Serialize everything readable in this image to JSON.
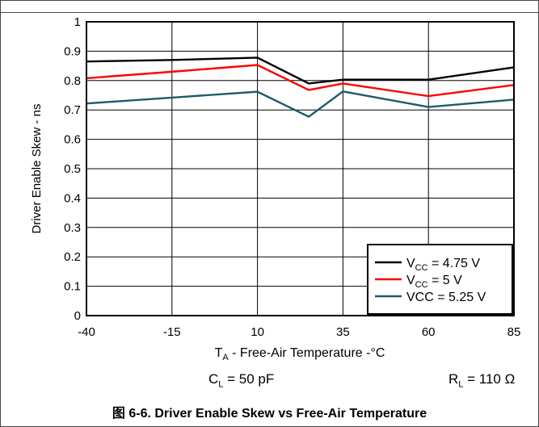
{
  "chart_data": {
    "type": "line",
    "x": [
      -40,
      -15,
      10,
      25,
      35,
      60,
      85
    ],
    "xticks": [
      -40,
      -15,
      10,
      35,
      60,
      85
    ],
    "xlim": [
      -40,
      85
    ],
    "ylim": [
      0,
      1
    ],
    "yticks": [
      0,
      0.1,
      0.2,
      0.3,
      0.4,
      0.5,
      0.6,
      0.7,
      0.8,
      0.9,
      1
    ],
    "ylabel": "Driver Enable Skew - ns",
    "xlabel_main": "T",
    "xlabel_sub": "A",
    "xlabel_rest": " - Free-Air Temperature -°C",
    "grid": true,
    "legend_position": "bottom-right",
    "series": [
      {
        "name": "VCC = 4.75 V",
        "name_main": "V",
        "name_sub": "CC",
        "name_rest": " = 4.75 V",
        "color": "#000000",
        "values": [
          0.865,
          0.87,
          0.878,
          0.79,
          0.803,
          0.803,
          0.845
        ]
      },
      {
        "name": "VCC = 5 V",
        "name_main": "V",
        "name_sub": "CC",
        "name_rest": " = 5 V",
        "color": "#ff0000",
        "values": [
          0.808,
          0.83,
          0.853,
          0.768,
          0.79,
          0.747,
          0.785
        ]
      },
      {
        "name": "VCC = 5.25 V",
        "name_main": "",
        "name_sub": "",
        "name_rest": "VCC = 5.25 V",
        "color": "#1f5a6b",
        "values": [
          0.722,
          0.742,
          0.762,
          0.677,
          0.763,
          0.71,
          0.735
        ]
      }
    ]
  },
  "conditions": {
    "cl_main": "C",
    "cl_sub": "L",
    "cl_rest": " = 50 pF",
    "rl_main": "R",
    "rl_sub": "L",
    "rl_rest": " = 110 Ω"
  },
  "caption": "图 6-6. Driver Enable Skew vs Free-Air Temperature"
}
